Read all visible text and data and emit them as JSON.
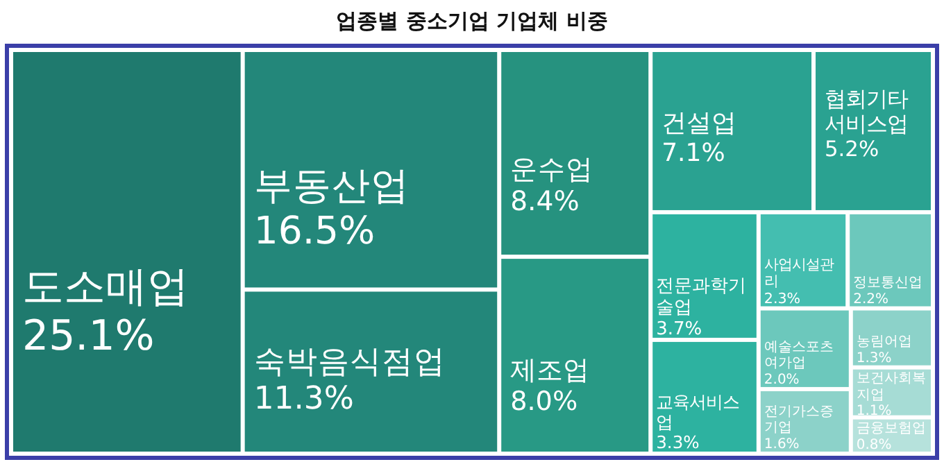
{
  "chart_data": {
    "type": "other",
    "title": "업종별 중소기업 기업체 비중",
    "categories": [
      "도소매업",
      "부동산업",
      "숙박음식점업",
      "운수업",
      "제조업",
      "건설업",
      "협회기타서비스업",
      "전문과학기술업",
      "교육서비스업",
      "사업시설관리",
      "정보통신업",
      "예술스포츠여가업",
      "전기가스증기업",
      "농림어업",
      "보건사회복지업",
      "금융보험업"
    ],
    "values": [
      25.1,
      16.5,
      11.3,
      8.4,
      8.0,
      7.1,
      5.2,
      3.7,
      3.3,
      2.3,
      2.2,
      2.0,
      1.6,
      1.3,
      1.1,
      0.8
    ],
    "value_labels": [
      "25.1%",
      "16.5%",
      "11.3%",
      "8.4%",
      "8.0%",
      "7.1%",
      "5.2%",
      "3.7%",
      "3.3%",
      "2.3%",
      "2.2%",
      "2.0%",
      "1.6%",
      "1.3%",
      "1.1%",
      "0.8%"
    ],
    "colors": [
      "#1f7a6e",
      "#23877a",
      "#23877a",
      "#26927f",
      "#289985",
      "#2aa291",
      "#2aa291",
      "#2db2a0",
      "#2db2a0",
      "#44beb0",
      "#6cc8bc",
      "#6cc8bc",
      "#8cd2c9",
      "#8cd2c9",
      "#a6dcd5",
      "#b6e2dc"
    ]
  }
}
